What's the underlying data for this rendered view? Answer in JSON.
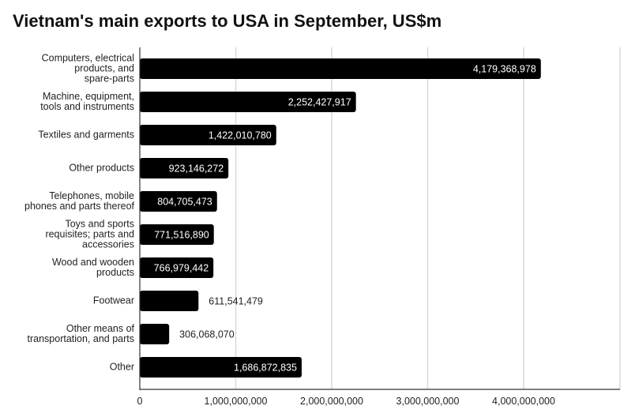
{
  "chart_data": {
    "type": "bar",
    "orientation": "horizontal",
    "title": "Vietnam's main exports to USA in September, US$m",
    "xlabel": "",
    "ylabel": "",
    "categories": [
      "Computers, electrical products, and spare-parts",
      "Machine, equipment, tools and instruments",
      "Textiles and garments",
      "Other products",
      "Telephones, mobile phones and parts thereof",
      "Toys and sports requisites; parts and accessories",
      "Wood and wooden products",
      "Footwear",
      "Other means of transportation, and parts",
      "Other"
    ],
    "category_lines": [
      [
        "Computers, electrical",
        "products, and",
        "spare-parts"
      ],
      [
        "Machine, equipment,",
        "tools and instruments"
      ],
      [
        "Textiles and garments"
      ],
      [
        "Other products"
      ],
      [
        "Telephones, mobile",
        "phones and parts thereof"
      ],
      [
        "Toys and sports",
        "requisites; parts and",
        "accessories"
      ],
      [
        "Wood and wooden",
        "products"
      ],
      [
        "Footwear"
      ],
      [
        "Other means of",
        "transportation, and parts"
      ],
      [
        "Other"
      ]
    ],
    "values": [
      4179368978,
      2252427917,
      1422010780,
      923146272,
      804705473,
      771516890,
      766979442,
      611541479,
      306068070,
      1686872835
    ],
    "value_labels": [
      "4,179,368,978",
      "2,252,427,917",
      "1,422,010,780",
      "923,146,272",
      "804,705,473",
      "771,516,890",
      "766,979,442",
      "611,541,479",
      "306,068,070",
      "1,686,872,835"
    ],
    "xlim": [
      0,
      5000000000
    ],
    "xticks": [
      0,
      1000000000,
      2000000000,
      3000000000,
      4000000000
    ],
    "xtick_labels": [
      "0",
      "1,000,000,000",
      "2,000,000,000",
      "3,000,000,000",
      "4,000,000,000"
    ],
    "grid": true,
    "legend": "none",
    "colors": {
      "bar": "#000000",
      "grid": "#d9d9d9",
      "axis": "#333333",
      "label_inside": "#ffffff",
      "label_outside": "#222222"
    }
  }
}
